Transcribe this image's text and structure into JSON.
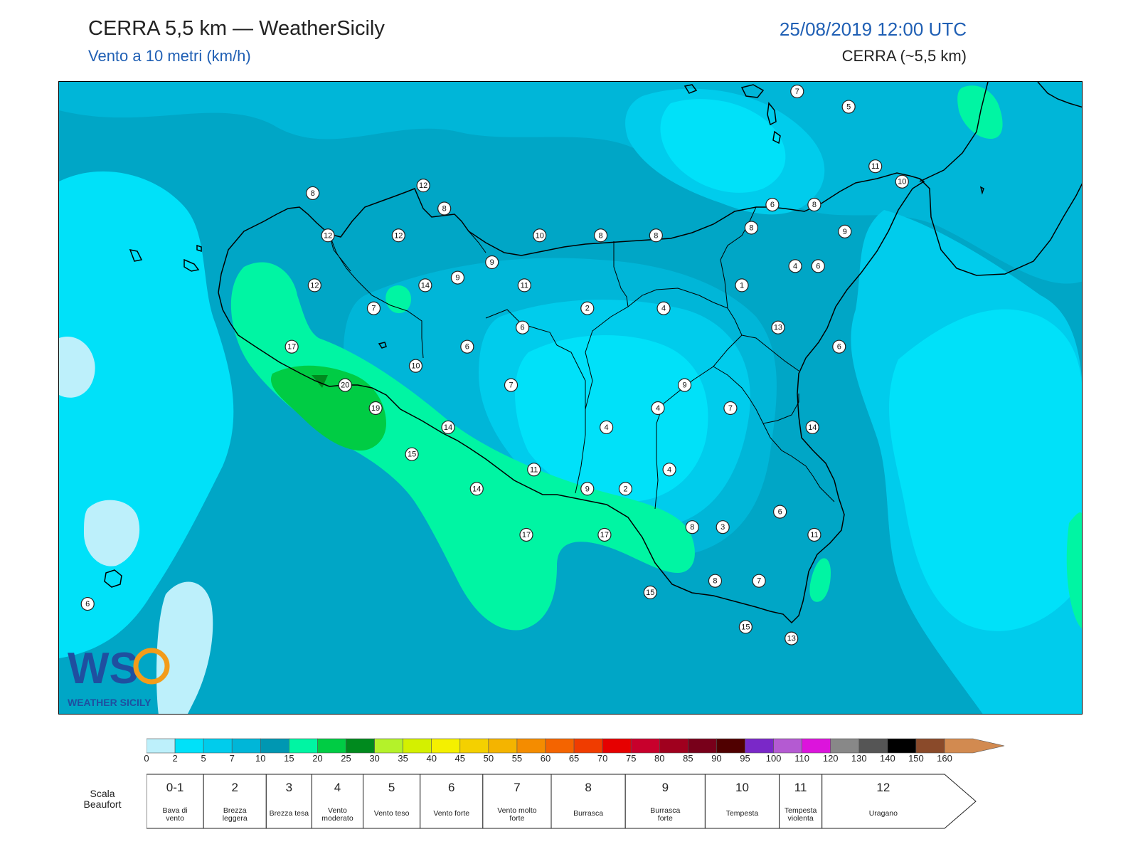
{
  "header": {
    "title": "CERRA 5,5 km — WeatherSicily",
    "subtitle": "Vento a 10 metri (km/h)",
    "datetime": "25/08/2019 12:00 UTC",
    "model": "CERRA (~5,5 km)"
  },
  "logo": {
    "main": "WS",
    "sub": "WEATHER SICILY"
  },
  "colors": {
    "ocean_base": "#00a6c6",
    "lvl_0_2": "#bdf0fb",
    "lvl_2_5": "#00e1f9",
    "lvl_5_7": "#00ccec",
    "lvl_7_10": "#00b6d8",
    "lvl_10_15": "#0097b2",
    "lvl_15_20": "#00f5a3",
    "lvl_20_25": "#00cc44",
    "lvl_25_30": "#008a1e",
    "coastline": "#000000",
    "title_blue": "#1f5fb4"
  },
  "stations": [
    {
      "v": "7",
      "lon": 14.95,
      "lat": 38.85
    },
    {
      "v": "5",
      "lon": 15.22,
      "lat": 38.77
    },
    {
      "v": "11",
      "lon": 15.36,
      "lat": 38.46
    },
    {
      "v": "10",
      "lon": 15.5,
      "lat": 38.38
    },
    {
      "v": "8",
      "lon": 12.41,
      "lat": 38.32
    },
    {
      "v": "12",
      "lon": 12.99,
      "lat": 38.36
    },
    {
      "v": "8",
      "lon": 13.1,
      "lat": 38.24
    },
    {
      "v": "6",
      "lon": 14.82,
      "lat": 38.26
    },
    {
      "v": "8",
      "lon": 15.04,
      "lat": 38.26
    },
    {
      "v": "8",
      "lon": 14.71,
      "lat": 38.14
    },
    {
      "v": "12",
      "lon": 12.49,
      "lat": 38.1
    },
    {
      "v": "12",
      "lon": 12.86,
      "lat": 38.1
    },
    {
      "v": "10",
      "lon": 13.6,
      "lat": 38.1
    },
    {
      "v": "8",
      "lon": 13.92,
      "lat": 38.1
    },
    {
      "v": "8",
      "lon": 14.21,
      "lat": 38.1
    },
    {
      "v": "9",
      "lon": 13.35,
      "lat": 37.96
    },
    {
      "v": "4",
      "lon": 14.94,
      "lat": 37.94
    },
    {
      "v": "6",
      "lon": 15.06,
      "lat": 37.94
    },
    {
      "v": "9",
      "lon": 15.2,
      "lat": 38.12
    },
    {
      "v": "9",
      "lon": 13.17,
      "lat": 37.88
    },
    {
      "v": "12",
      "lon": 12.42,
      "lat": 37.84
    },
    {
      "v": "14",
      "lon": 13.0,
      "lat": 37.84
    },
    {
      "v": "11",
      "lon": 13.52,
      "lat": 37.84
    },
    {
      "v": "1",
      "lon": 14.66,
      "lat": 37.84
    },
    {
      "v": "2",
      "lon": 13.85,
      "lat": 37.72
    },
    {
      "v": "4",
      "lon": 14.25,
      "lat": 37.72
    },
    {
      "v": "7",
      "lon": 12.73,
      "lat": 37.72
    },
    {
      "v": "6",
      "lon": 13.51,
      "lat": 37.62
    },
    {
      "v": "13",
      "lon": 14.85,
      "lat": 37.62
    },
    {
      "v": "17",
      "lon": 12.3,
      "lat": 37.52
    },
    {
      "v": "6",
      "lon": 13.22,
      "lat": 37.52
    },
    {
      "v": "6",
      "lon": 15.17,
      "lat": 37.52
    },
    {
      "v": "10",
      "lon": 12.95,
      "lat": 37.42
    },
    {
      "v": "20",
      "lon": 12.58,
      "lat": 37.32
    },
    {
      "v": "7",
      "lon": 13.45,
      "lat": 37.32
    },
    {
      "v": "9",
      "lon": 14.36,
      "lat": 37.32
    },
    {
      "v": "19",
      "lon": 12.74,
      "lat": 37.2
    },
    {
      "v": "4",
      "lon": 14.22,
      "lat": 37.2
    },
    {
      "v": "7",
      "lon": 14.6,
      "lat": 37.2
    },
    {
      "v": "14",
      "lon": 13.12,
      "lat": 37.1
    },
    {
      "v": "4",
      "lon": 13.95,
      "lat": 37.1
    },
    {
      "v": "14",
      "lon": 15.03,
      "lat": 37.1
    },
    {
      "v": "15",
      "lon": 12.93,
      "lat": 36.96
    },
    {
      "v": "11",
      "lon": 13.57,
      "lat": 36.88
    },
    {
      "v": "4",
      "lon": 14.28,
      "lat": 36.88
    },
    {
      "v": "14",
      "lon": 13.27,
      "lat": 36.78
    },
    {
      "v": "9",
      "lon": 13.85,
      "lat": 36.78
    },
    {
      "v": "2",
      "lon": 14.05,
      "lat": 36.78
    },
    {
      "v": "6",
      "lon": 14.86,
      "lat": 36.66
    },
    {
      "v": "8",
      "lon": 14.4,
      "lat": 36.58
    },
    {
      "v": "3",
      "lon": 14.56,
      "lat": 36.58
    },
    {
      "v": "17",
      "lon": 13.53,
      "lat": 36.54
    },
    {
      "v": "17",
      "lon": 13.94,
      "lat": 36.54
    },
    {
      "v": "11",
      "lon": 15.04,
      "lat": 36.54
    },
    {
      "v": "8",
      "lon": 14.52,
      "lat": 36.3
    },
    {
      "v": "7",
      "lon": 14.75,
      "lat": 36.3
    },
    {
      "v": "15",
      "lon": 14.18,
      "lat": 36.24
    },
    {
      "v": "15",
      "lon": 14.68,
      "lat": 36.06
    },
    {
      "v": "13",
      "lon": 14.92,
      "lat": 36.0
    },
    {
      "v": "6",
      "lon": 11.23,
      "lat": 36.18
    }
  ],
  "legend": {
    "ticks": [
      "0",
      "2",
      "5",
      "7",
      "10",
      "15",
      "20",
      "25",
      "30",
      "35",
      "40",
      "45",
      "50",
      "55",
      "60",
      "65",
      "70",
      "75",
      "80",
      "85",
      "90",
      "95",
      "100",
      "110",
      "120",
      "130",
      "140",
      "150",
      "160"
    ],
    "swatches": [
      "#bdf0fb",
      "#00e1f9",
      "#00ccec",
      "#00b6d8",
      "#0097b2",
      "#00f5a3",
      "#00cc44",
      "#008a1e",
      "#b4f22a",
      "#d4f000",
      "#f4f000",
      "#f4d000",
      "#f4b400",
      "#f48c00",
      "#f46400",
      "#f03c00",
      "#e60000",
      "#c8002c",
      "#a0001e",
      "#78001a",
      "#500000",
      "#7a28c8",
      "#b45ad2",
      "#dc14dc",
      "#888888",
      "#555555",
      "#000000",
      "#8a4a2a",
      "#d28a50"
    ],
    "scale_label": "Scala Beaufort",
    "beaufort": [
      {
        "num": "0-1",
        "desc": "Bava di vento"
      },
      {
        "num": "2",
        "desc": "Brezza leggera"
      },
      {
        "num": "3",
        "desc": "Brezza tesa"
      },
      {
        "num": "4",
        "desc": "Vento moderato"
      },
      {
        "num": "5",
        "desc": "Vento teso"
      },
      {
        "num": "6",
        "desc": "Vento forte"
      },
      {
        "num": "7",
        "desc": "Vento molto forte"
      },
      {
        "num": "8",
        "desc": "Burrasca"
      },
      {
        "num": "9",
        "desc": "Burrasca forte"
      },
      {
        "num": "10",
        "desc": "Tempesta"
      },
      {
        "num": "11",
        "desc": "Tempesta violenta"
      },
      {
        "num": "12",
        "desc": "Uragano"
      }
    ]
  }
}
